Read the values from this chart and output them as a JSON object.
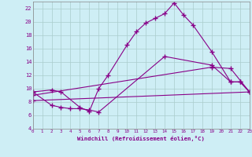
{
  "xlabel": "Windchill (Refroidissement éolien,°C)",
  "background_color": "#ceeef5",
  "line_color": "#880088",
  "xlim": [
    0,
    23
  ],
  "ylim": [
    4,
    23
  ],
  "yticks": [
    4,
    6,
    8,
    10,
    12,
    14,
    16,
    18,
    20,
    22
  ],
  "xticks": [
    0,
    1,
    2,
    3,
    4,
    5,
    6,
    7,
    8,
    9,
    10,
    11,
    12,
    13,
    14,
    15,
    16,
    17,
    18,
    19,
    20,
    21,
    22,
    23
  ],
  "grid_color": "#aacccc",
  "lines": [
    {
      "x": [
        0,
        2,
        3,
        5,
        6,
        7,
        8,
        10,
        11,
        12,
        13,
        14,
        15,
        16,
        17,
        19,
        21,
        22,
        23
      ],
      "y": [
        9.5,
        9.8,
        9.5,
        7.2,
        6.6,
        10.0,
        12.0,
        16.5,
        18.5,
        19.8,
        20.5,
        21.2,
        22.8,
        21.0,
        19.5,
        15.5,
        11.0,
        11.0,
        9.5
      ]
    },
    {
      "x": [
        0,
        2,
        3,
        4,
        5,
        6,
        7,
        14,
        19,
        21,
        22,
        23
      ],
      "y": [
        9.5,
        7.5,
        7.2,
        7.0,
        7.0,
        6.8,
        6.5,
        14.8,
        13.5,
        11.0,
        11.0,
        9.5
      ]
    },
    {
      "x": [
        0,
        19,
        21,
        23
      ],
      "y": [
        9.0,
        13.2,
        13.0,
        9.5
      ]
    },
    {
      "x": [
        0,
        23
      ],
      "y": [
        8.2,
        9.5
      ]
    }
  ]
}
